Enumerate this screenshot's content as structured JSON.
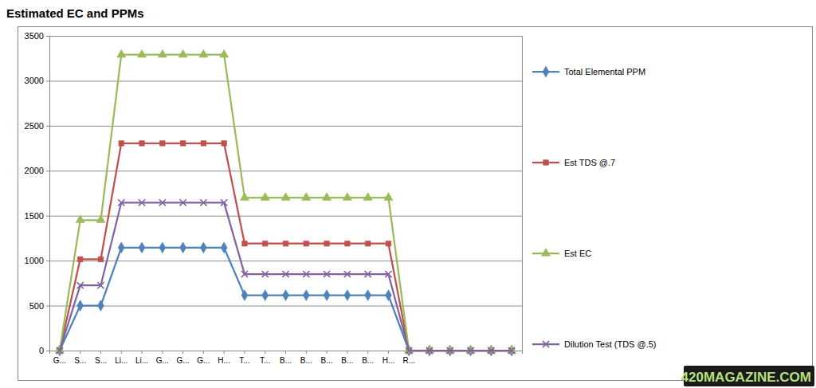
{
  "chart_data": {
    "type": "line",
    "title": "Estimated EC and PPMs",
    "categories": [
      "G...",
      "S...",
      "S...",
      "Li...",
      "Li...",
      "G...",
      "G...",
      "G...",
      "H...",
      "T...",
      "T...",
      "B...",
      "B...",
      "B...",
      "B...",
      "B...",
      "H...",
      "R...",
      null,
      null,
      null,
      null,
      null
    ],
    "series": [
      {
        "name": "Total Elemental PPM",
        "color": "#4f81bd",
        "marker": "diamond",
        "values": [
          0,
          500,
          500,
          1145,
          1145,
          1145,
          1145,
          1145,
          1145,
          615,
          615,
          615,
          615,
          615,
          615,
          615,
          615,
          0,
          0,
          0,
          0,
          0,
          0
        ]
      },
      {
        "name": "Est TDS @.7",
        "color": "#c0504d",
        "marker": "square",
        "values": [
          0,
          1015,
          1015,
          2305,
          2305,
          2305,
          2305,
          2305,
          2305,
          1190,
          1190,
          1190,
          1190,
          1190,
          1190,
          1190,
          1190,
          0,
          0,
          0,
          0,
          0,
          0
        ]
      },
      {
        "name": "Est EC",
        "color": "#9bbb59",
        "marker": "triangle",
        "values": [
          0,
          1450,
          1450,
          3290,
          3290,
          3290,
          3290,
          3290,
          3290,
          1700,
          1700,
          1700,
          1700,
          1700,
          1700,
          1700,
          1700,
          0,
          0,
          0,
          0,
          0,
          0
        ]
      },
      {
        "name": "Dilution Test (TDS @.5)",
        "color": "#8064a2",
        "marker": "x",
        "values": [
          0,
          725,
          725,
          1645,
          1645,
          1645,
          1645,
          1645,
          1645,
          850,
          850,
          850,
          850,
          850,
          850,
          850,
          850,
          0,
          0,
          0,
          0,
          0,
          0
        ]
      }
    ],
    "ylim": [
      0,
      3500
    ],
    "yticks": [
      0,
      500,
      1000,
      1500,
      2000,
      2500,
      3000,
      3500
    ],
    "grid": true,
    "legend": "right",
    "annotations": [
      "420MAGAZINE.COM"
    ]
  }
}
